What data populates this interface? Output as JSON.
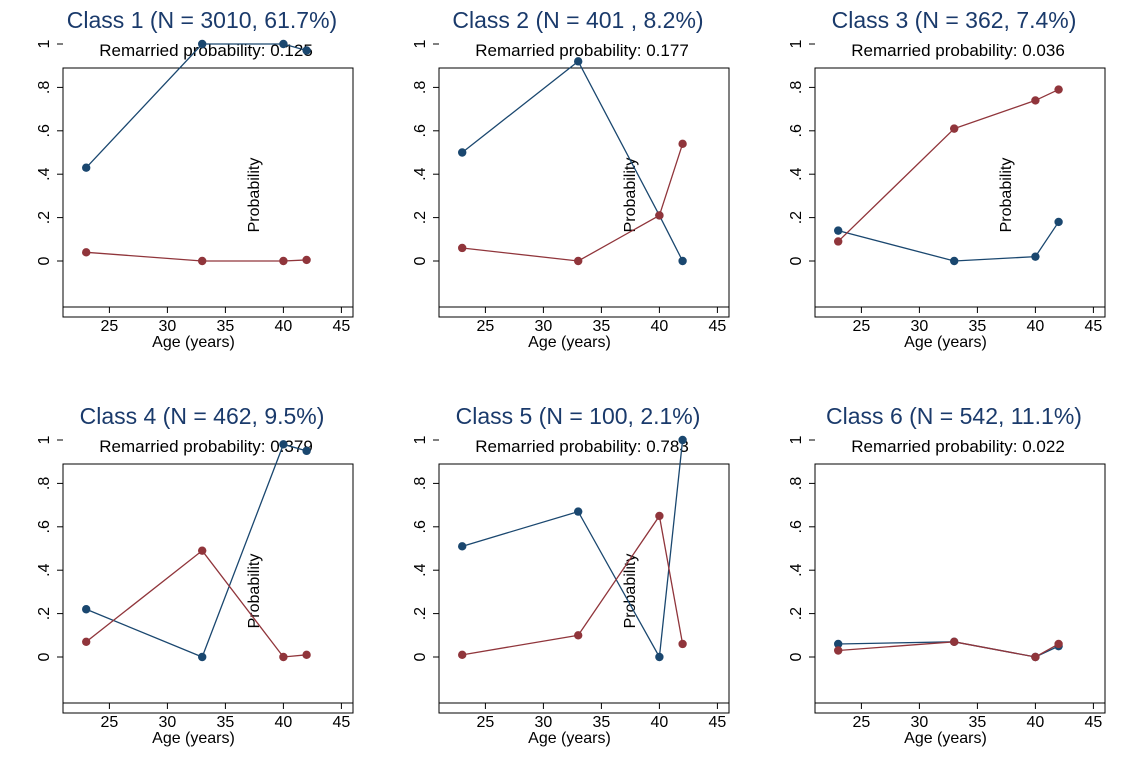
{
  "chart_data": [
    {
      "type": "line",
      "title": "Class 1 (N = 3010, 61.7%)",
      "subtitle": "Remarried probability: 0.125",
      "xlabel": "Age (years)",
      "ylabel": "Probability",
      "xlim": [
        21,
        46
      ],
      "ylim": [
        0,
        1
      ],
      "xticks": [
        25,
        30,
        35,
        40,
        45
      ],
      "yticks": [
        0,
        0.2,
        0.4,
        0.6,
        0.8,
        1
      ],
      "ytick_labels": [
        "0",
        ".2",
        ".4",
        ".6",
        ".8",
        "1"
      ],
      "x": [
        23,
        33,
        40,
        42
      ],
      "series": [
        {
          "color": "#1a476f",
          "values": [
            0.43,
            1.0,
            1.0,
            0.97
          ]
        },
        {
          "color": "#90353b",
          "values": [
            0.04,
            0.0,
            0.0,
            0.005
          ]
        }
      ]
    },
    {
      "type": "line",
      "title": "Class 2 (N = 401 , 8.2%)",
      "subtitle": "Remarried probability: 0.177",
      "xlabel": "Age (years)",
      "ylabel": "Probability",
      "xlim": [
        21,
        46
      ],
      "ylim": [
        0,
        1
      ],
      "xticks": [
        25,
        30,
        35,
        40,
        45
      ],
      "yticks": [
        0,
        0.2,
        0.4,
        0.6,
        0.8,
        1
      ],
      "ytick_labels": [
        "0",
        ".2",
        ".4",
        ".6",
        ".8",
        "1"
      ],
      "x": [
        23,
        33,
        40,
        42
      ],
      "series": [
        {
          "color": "#1a476f",
          "values": [
            0.5,
            0.92,
            0.21,
            0.0
          ]
        },
        {
          "color": "#90353b",
          "values": [
            0.06,
            0.0,
            0.21,
            0.54
          ]
        }
      ]
    },
    {
      "type": "line",
      "title": "Class 3 (N = 362, 7.4%)",
      "subtitle": "Remarried probability: 0.036",
      "xlabel": "Age (years)",
      "ylabel": "Probability",
      "xlim": [
        21,
        46
      ],
      "ylim": [
        0,
        1
      ],
      "xticks": [
        25,
        30,
        35,
        40,
        45
      ],
      "yticks": [
        0,
        0.2,
        0.4,
        0.6,
        0.8,
        1
      ],
      "ytick_labels": [
        "0",
        ".2",
        ".4",
        ".6",
        ".8",
        "1"
      ],
      "x": [
        23,
        33,
        40,
        42
      ],
      "series": [
        {
          "color": "#1a476f",
          "values": [
            0.14,
            0.0,
            0.02,
            0.18
          ]
        },
        {
          "color": "#90353b",
          "values": [
            0.09,
            0.61,
            0.74,
            0.79
          ]
        }
      ]
    },
    {
      "type": "line",
      "title": "Class 4 (N = 462, 9.5%)",
      "subtitle": "Remarried probability: 0.379",
      "xlabel": "Age (years)",
      "ylabel": "Probability",
      "xlim": [
        21,
        46
      ],
      "ylim": [
        0,
        1
      ],
      "xticks": [
        25,
        30,
        35,
        40,
        45
      ],
      "yticks": [
        0,
        0.2,
        0.4,
        0.6,
        0.8,
        1
      ],
      "ytick_labels": [
        "0",
        ".2",
        ".4",
        ".6",
        ".8",
        "1"
      ],
      "x": [
        23,
        33,
        40,
        42
      ],
      "series": [
        {
          "color": "#1a476f",
          "values": [
            0.22,
            0.0,
            0.98,
            0.95
          ]
        },
        {
          "color": "#90353b",
          "values": [
            0.07,
            0.49,
            0.0,
            0.01
          ]
        }
      ]
    },
    {
      "type": "line",
      "title": "Class 5 (N = 100, 2.1%)",
      "subtitle": "Remarried probability: 0.783",
      "xlabel": "Age (years)",
      "ylabel": "Probability",
      "xlim": [
        21,
        46
      ],
      "ylim": [
        0,
        1
      ],
      "xticks": [
        25,
        30,
        35,
        40,
        45
      ],
      "yticks": [
        0,
        0.2,
        0.4,
        0.6,
        0.8,
        1
      ],
      "ytick_labels": [
        "0",
        ".2",
        ".4",
        ".6",
        ".8",
        "1"
      ],
      "x": [
        23,
        33,
        40,
        42
      ],
      "series": [
        {
          "color": "#1a476f",
          "values": [
            0.51,
            0.67,
            0.0,
            1.0
          ]
        },
        {
          "color": "#90353b",
          "values": [
            0.01,
            0.1,
            0.65,
            0.06
          ]
        }
      ]
    },
    {
      "type": "line",
      "title": "Class 6 (N = 542, 11.1%)",
      "subtitle": "Remarried probability: 0.022",
      "xlabel": "Age (years)",
      "ylabel": "",
      "xlim": [
        21,
        46
      ],
      "ylim": [
        0,
        1
      ],
      "xticks": [
        25,
        30,
        35,
        40,
        45
      ],
      "yticks": [
        0,
        0.2,
        0.4,
        0.6,
        0.8,
        1
      ],
      "ytick_labels": [
        "0",
        ".2",
        ".4",
        ".6",
        ".8",
        "1"
      ],
      "x": [
        23,
        33,
        40,
        42
      ],
      "series": [
        {
          "color": "#1a476f",
          "values": [
            0.06,
            0.07,
            0.0,
            0.05
          ]
        },
        {
          "color": "#90353b",
          "values": [
            0.03,
            0.07,
            0.0,
            0.06
          ]
        }
      ]
    }
  ]
}
